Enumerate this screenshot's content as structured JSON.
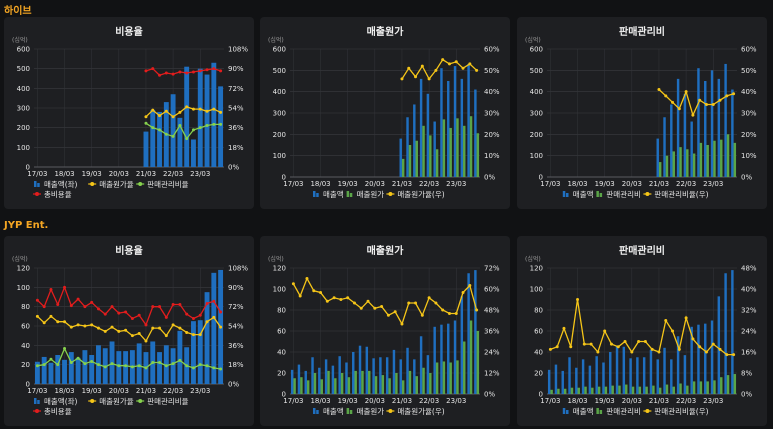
{
  "sections": [
    {
      "title": "하이브"
    },
    {
      "title": "JYP Ent."
    }
  ],
  "colors": {
    "sales": "#1f6fc0",
    "cogs": "#5aa548",
    "sga": "#5aa548",
    "cogs_ratio": "#f5c518",
    "sga_ratio": "#86d14d",
    "total_ratio": "#e21d1d"
  },
  "chart_data": [
    {
      "type": "bar",
      "title": "비용율",
      "unit_label": "(십억)",
      "x_ticks": [
        "17/03",
        "18/03",
        "19/03",
        "20/03",
        "21/03",
        "22/03",
        "23/03"
      ],
      "ylim": [
        0,
        600
      ],
      "y_ticks": [
        "0",
        "100",
        "200",
        "300",
        "400",
        "500",
        "600"
      ],
      "y2lim": [
        0,
        108
      ],
      "y2_ticks": [
        "0%",
        "18%",
        "36%",
        "54%",
        "72%",
        "90%",
        "108%"
      ],
      "bar_series": [
        {
          "name": "매출액(좌)",
          "color": "#1f6fc0",
          "values": [
            null,
            null,
            null,
            null,
            null,
            null,
            null,
            null,
            null,
            null,
            null,
            null,
            null,
            null,
            null,
            null,
            180,
            290,
            280,
            330,
            370,
            250,
            510,
            140,
            500,
            470,
            530,
            410
          ]
        }
      ],
      "line_series": [
        {
          "name": "매출원가율",
          "color": "#f5c518",
          "values": [
            null,
            null,
            null,
            null,
            null,
            null,
            null,
            null,
            null,
            null,
            null,
            null,
            null,
            null,
            null,
            null,
            46,
            52,
            47,
            51,
            46,
            50,
            55,
            53,
            53,
            51,
            53,
            50
          ]
        },
        {
          "name": "판매관리비율",
          "color": "#86d14d",
          "values": [
            null,
            null,
            null,
            null,
            null,
            null,
            null,
            null,
            null,
            null,
            null,
            null,
            null,
            null,
            null,
            null,
            40,
            36,
            34,
            30,
            28,
            38,
            26,
            34,
            36,
            38,
            39,
            39
          ]
        },
        {
          "name": "총비용율",
          "color": "#e21d1d",
          "values": [
            null,
            null,
            null,
            null,
            null,
            null,
            null,
            null,
            null,
            null,
            null,
            null,
            null,
            null,
            null,
            null,
            88,
            90,
            84,
            86,
            85,
            87,
            86,
            87,
            88,
            89,
            90,
            88
          ]
        }
      ],
      "legend": [
        "매출액(좌)",
        "매출원가율",
        "판매관리비율",
        "총비용율"
      ]
    },
    {
      "type": "bar",
      "title": "매출원가",
      "unit_label": "(십억)",
      "x_ticks": [
        "17/03",
        "18/03",
        "19/03",
        "20/03",
        "21/03",
        "22/03",
        "23/03"
      ],
      "ylim": [
        0,
        600
      ],
      "y_ticks": [
        "0",
        "100",
        "200",
        "300",
        "400",
        "500",
        "600"
      ],
      "y2lim": [
        0,
        60
      ],
      "y2_ticks": [
        "0%",
        "10%",
        "20%",
        "30%",
        "40%",
        "50%",
        "60%"
      ],
      "bar_series": [
        {
          "name": "매출액",
          "color": "#1f6fc0",
          "values": [
            null,
            null,
            null,
            null,
            null,
            null,
            null,
            null,
            null,
            null,
            null,
            null,
            null,
            null,
            null,
            null,
            180,
            280,
            340,
            460,
            390,
            260,
            510,
            450,
            520,
            460,
            530,
            410
          ]
        },
        {
          "name": "매출원가",
          "color": "#5aa548",
          "values": [
            null,
            null,
            null,
            null,
            null,
            null,
            null,
            null,
            null,
            null,
            null,
            null,
            null,
            null,
            null,
            null,
            85,
            150,
            170,
            240,
            195,
            130,
            270,
            230,
            275,
            240,
            285,
            205
          ]
        }
      ],
      "line_series": [
        {
          "name": "매출원가율(우)",
          "color": "#f5c518",
          "values": [
            null,
            null,
            null,
            null,
            null,
            null,
            null,
            null,
            null,
            null,
            null,
            null,
            null,
            null,
            null,
            null,
            46,
            51,
            47,
            52,
            46,
            50,
            55,
            53,
            54,
            51,
            53,
            50
          ]
        }
      ],
      "legend": [
        "매출액",
        "매출원가",
        "매출원가율(우)"
      ]
    },
    {
      "type": "bar",
      "title": "판매관리비",
      "unit_label": "(십억)",
      "x_ticks": [
        "17/03",
        "18/03",
        "19/03",
        "20/03",
        "21/03",
        "22/03",
        "23/03"
      ],
      "ylim": [
        0,
        600
      ],
      "y_ticks": [
        "0",
        "100",
        "200",
        "300",
        "400",
        "500",
        "600"
      ],
      "y2lim": [
        0,
        60
      ],
      "y2_ticks": [
        "0%",
        "10%",
        "20%",
        "30%",
        "40%",
        "50%",
        "60%"
      ],
      "bar_series": [
        {
          "name": "매출액",
          "color": "#1f6fc0",
          "values": [
            null,
            null,
            null,
            null,
            null,
            null,
            null,
            null,
            null,
            null,
            null,
            null,
            null,
            null,
            null,
            null,
            180,
            280,
            340,
            460,
            390,
            260,
            510,
            450,
            500,
            460,
            530,
            410
          ]
        },
        {
          "name": "판매관리비",
          "color": "#5aa548",
          "values": [
            null,
            null,
            null,
            null,
            null,
            null,
            null,
            null,
            null,
            null,
            null,
            null,
            null,
            null,
            null,
            null,
            70,
            100,
            120,
            140,
            130,
            110,
            160,
            150,
            170,
            175,
            200,
            160
          ]
        }
      ],
      "line_series": [
        {
          "name": "판매관리비율(우)",
          "color": "#f5c518",
          "values": [
            null,
            null,
            null,
            null,
            null,
            null,
            null,
            null,
            null,
            null,
            null,
            null,
            null,
            null,
            null,
            null,
            41,
            38,
            35,
            32,
            40,
            29,
            36,
            34,
            34,
            36,
            38,
            39
          ]
        }
      ],
      "legend": [
        "매출액",
        "판매관리비",
        "판매관리비율(우)"
      ]
    },
    {
      "type": "bar",
      "title": "비용율",
      "unit_label": "(십억)",
      "x_ticks": [
        "17/03",
        "18/03",
        "19/03",
        "20/03",
        "21/03",
        "22/03",
        "23/03"
      ],
      "ylim": [
        0,
        120
      ],
      "y_ticks": [
        "0",
        "20",
        "40",
        "60",
        "80",
        "100",
        "120"
      ],
      "y2lim": [
        0,
        108
      ],
      "y2_ticks": [
        "0%",
        "18%",
        "36%",
        "54%",
        "72%",
        "90%",
        "108%"
      ],
      "bar_series": [
        {
          "name": "매출액(좌)",
          "color": "#1f6fc0",
          "values": [
            23,
            28,
            22,
            30,
            25,
            33,
            27,
            35,
            30,
            40,
            37,
            44,
            34,
            34,
            35,
            42,
            33,
            44,
            33,
            40,
            37,
            55,
            38,
            65,
            66,
            95,
            115,
            118
          ]
        }
      ],
      "line_series": [
        {
          "name": "매출원가율",
          "color": "#f5c518",
          "values": [
            63,
            57,
            63,
            58,
            58,
            53,
            55,
            54,
            55,
            52,
            49,
            53,
            49,
            50,
            45,
            47,
            40,
            52,
            52,
            45,
            55,
            52,
            48,
            46,
            46,
            58,
            62,
            53
          ]
        },
        {
          "name": "판매관리비율",
          "color": "#86d14d",
          "values": [
            17,
            18,
            23,
            18,
            33,
            20,
            24,
            19,
            21,
            18,
            16,
            19,
            17,
            17,
            16,
            17,
            15,
            20,
            20,
            17,
            19,
            22,
            17,
            15,
            18,
            17,
            15,
            14
          ]
        },
        {
          "name": "총비용율",
          "color": "#e21d1d",
          "values": [
            78,
            72,
            88,
            74,
            90,
            73,
            79,
            72,
            76,
            70,
            65,
            72,
            66,
            67,
            61,
            64,
            55,
            72,
            72,
            62,
            74,
            74,
            65,
            61,
            64,
            75,
            77,
            67
          ]
        }
      ],
      "legend": [
        "매출액(좌)",
        "매출원가율",
        "판매관리비율",
        "총비용율"
      ]
    },
    {
      "type": "bar",
      "title": "매출원가",
      "unit_label": "(십억)",
      "x_ticks": [
        "17/03",
        "18/03",
        "19/03",
        "20/03",
        "21/03",
        "22/03",
        "23/03"
      ],
      "ylim": [
        0,
        120
      ],
      "y_ticks": [
        "0",
        "20",
        "40",
        "60",
        "80",
        "100",
        "120"
      ],
      "y2lim": [
        0,
        72
      ],
      "y2_ticks": [
        "0%",
        "12%",
        "24%",
        "36%",
        "48%",
        "60%",
        "72%"
      ],
      "bar_series": [
        {
          "name": "매출액",
          "color": "#1f6fc0",
          "values": [
            23,
            28,
            22,
            35,
            25,
            33,
            27,
            36,
            30,
            40,
            46,
            45,
            34,
            35,
            35,
            42,
            33,
            44,
            33,
            55,
            37,
            64,
            66,
            67,
            70,
            93,
            115,
            118
          ]
        },
        {
          "name": "매출원가",
          "color": "#5aa548",
          "values": [
            15,
            16,
            13,
            20,
            14,
            22,
            15,
            20,
            16,
            22,
            22,
            22,
            17,
            18,
            15,
            20,
            13,
            22,
            17,
            25,
            20,
            30,
            31,
            30,
            32,
            50,
            70,
            60
          ]
        }
      ],
      "line_series": [
        {
          "name": "매출원가율(우)",
          "color": "#f5c518",
          "values": [
            63,
            56,
            66,
            59,
            58,
            53,
            55,
            54,
            55,
            52,
            49,
            53,
            49,
            50,
            45,
            47,
            40,
            52,
            52,
            45,
            55,
            52,
            48,
            46,
            46,
            58,
            62,
            48
          ]
        }
      ],
      "legend": [
        "매출액",
        "매출원가",
        "매출원가율(우)"
      ]
    },
    {
      "type": "bar",
      "title": "판매관리비",
      "unit_label": "(십억)",
      "x_ticks": [
        "17/03",
        "18/03",
        "19/03",
        "20/03",
        "21/03",
        "22/03",
        "23/03"
      ],
      "ylim": [
        0,
        120
      ],
      "y_ticks": [
        "0",
        "20",
        "40",
        "60",
        "80",
        "100",
        "120"
      ],
      "y2lim": [
        0,
        48
      ],
      "y2_ticks": [
        "0%",
        "8%",
        "16%",
        "24%",
        "32%",
        "40%",
        "48%"
      ],
      "bar_series": [
        {
          "name": "매출액",
          "color": "#1f6fc0",
          "values": [
            23,
            28,
            22,
            35,
            25,
            33,
            27,
            36,
            30,
            40,
            46,
            45,
            34,
            35,
            35,
            42,
            33,
            44,
            33,
            55,
            37,
            64,
            66,
            67,
            70,
            93,
            115,
            118
          ]
        },
        {
          "name": "판매관리비",
          "color": "#5aa548",
          "values": [
            4,
            5,
            5,
            6,
            6,
            7,
            6,
            7,
            7,
            8,
            8,
            9,
            7,
            7,
            7,
            8,
            6,
            9,
            7,
            10,
            8,
            12,
            12,
            12,
            13,
            16,
            18,
            19
          ]
        }
      ],
      "line_series": [
        {
          "name": "판매관리비율(우)",
          "color": "#f5c518",
          "values": [
            17,
            18,
            25,
            18,
            36,
            19,
            19,
            16,
            24,
            19,
            18,
            20,
            16,
            20,
            20,
            17,
            16,
            28,
            24,
            17,
            29,
            21,
            18,
            16,
            19,
            17,
            15,
            15
          ]
        }
      ],
      "legend": [
        "매출액",
        "판매관리비",
        "판매관리비율(우)"
      ]
    }
  ]
}
